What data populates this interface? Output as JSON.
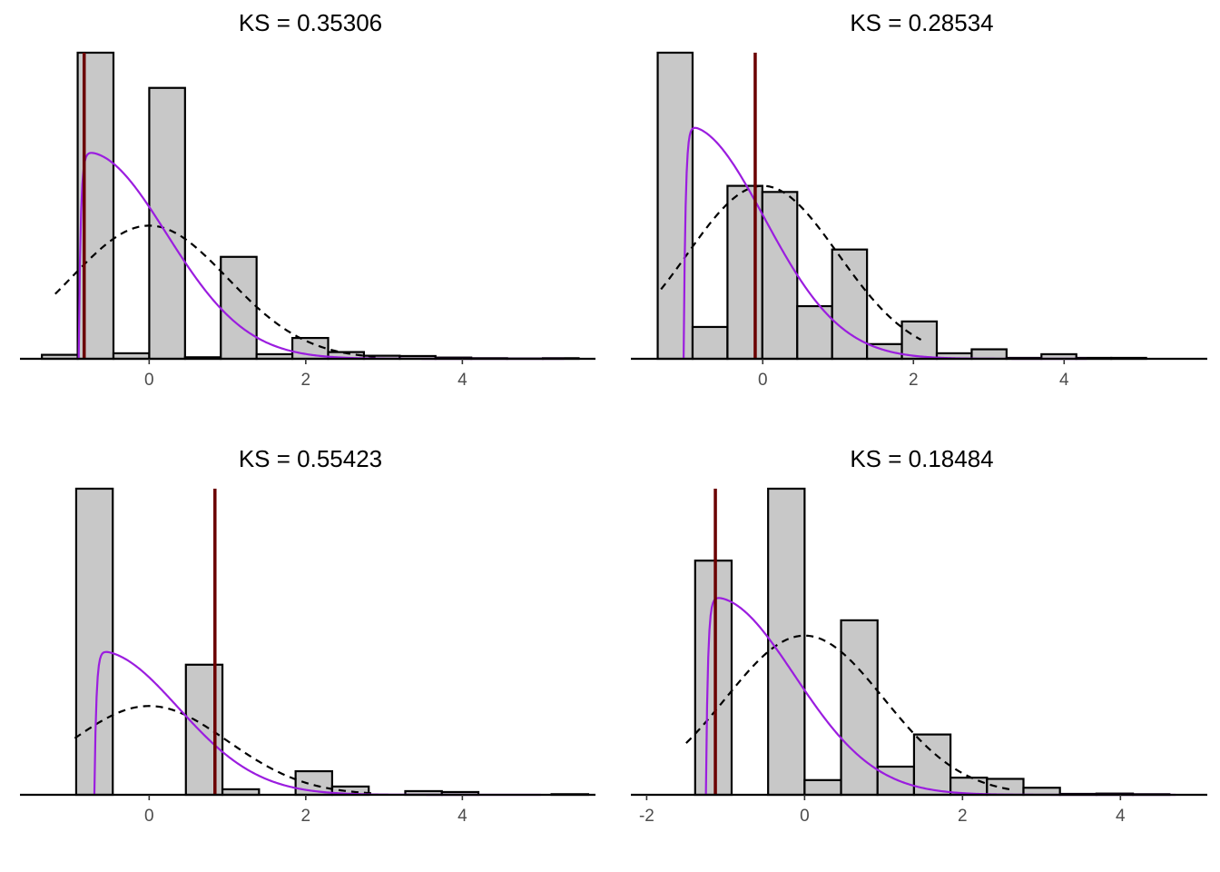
{
  "chart_data": [
    {
      "type": "bar",
      "title": "KS = 0.35306",
      "bin_width": 0.457,
      "xlim": [
        -1.65,
        5.7
      ],
      "ylim": [
        0,
        1
      ],
      "x_ticks": [
        0,
        2,
        4
      ],
      "x_tick_labels": [
        "0",
        "2",
        "4"
      ],
      "bins": [
        {
          "x0": -1.37,
          "x1": -0.913,
          "y": 0.013
        },
        {
          "x0": -0.913,
          "x1": -0.456,
          "y": 1.0
        },
        {
          "x0": -0.456,
          "x1": 0.001,
          "y": 0.018
        },
        {
          "x0": 0.001,
          "x1": 0.458,
          "y": 0.885
        },
        {
          "x0": 0.458,
          "x1": 0.915,
          "y": 0.005
        },
        {
          "x0": 0.915,
          "x1": 1.372,
          "y": 0.333
        },
        {
          "x0": 1.372,
          "x1": 1.829,
          "y": 0.015
        },
        {
          "x0": 1.829,
          "x1": 2.286,
          "y": 0.068
        },
        {
          "x0": 2.286,
          "x1": 2.743,
          "y": 0.022
        },
        {
          "x0": 2.743,
          "x1": 3.2,
          "y": 0.01
        },
        {
          "x0": 3.2,
          "x1": 3.657,
          "y": 0.009
        },
        {
          "x0": 3.657,
          "x1": 4.114,
          "y": 0.004
        },
        {
          "x0": 4.114,
          "x1": 4.571,
          "y": 0.002
        },
        {
          "x0": 4.571,
          "x1": 5.028,
          "y": 0.001
        },
        {
          "x0": 5.028,
          "x1": 5.485,
          "y": 0.002
        }
      ],
      "normal_curve": {
        "mean": 0,
        "sd": 1,
        "peak": 0.435,
        "x_range": [
          -1.2,
          2.9
        ]
      },
      "fit_curve": {
        "start": -0.9,
        "peak": 0.675,
        "mode": -0.8,
        "x_end": 5.3
      },
      "reference_line_x": -0.83
    },
    {
      "type": "bar",
      "title": "KS = 0.28534",
      "bin_width": 0.463,
      "xlim": [
        -1.75,
        5.9
      ],
      "ylim": [
        0,
        1
      ],
      "x_ticks": [
        0,
        2,
        4
      ],
      "x_tick_labels": [
        "0",
        "2",
        "4"
      ],
      "bins": [
        {
          "x0": -1.394,
          "x1": -0.931,
          "y": 1.0
        },
        {
          "x0": -0.931,
          "x1": -0.468,
          "y": 0.104
        },
        {
          "x0": -0.468,
          "x1": -0.005,
          "y": 0.565
        },
        {
          "x0": -0.005,
          "x1": 0.458,
          "y": 0.545
        },
        {
          "x0": 0.458,
          "x1": 0.921,
          "y": 0.172
        },
        {
          "x0": 0.921,
          "x1": 1.384,
          "y": 0.357
        },
        {
          "x0": 1.384,
          "x1": 1.847,
          "y": 0.048
        },
        {
          "x0": 1.847,
          "x1": 2.31,
          "y": 0.122
        },
        {
          "x0": 2.31,
          "x1": 2.773,
          "y": 0.018
        },
        {
          "x0": 2.773,
          "x1": 3.236,
          "y": 0.031
        },
        {
          "x0": 3.236,
          "x1": 3.699,
          "y": 0.003
        },
        {
          "x0": 3.699,
          "x1": 4.162,
          "y": 0.015
        },
        {
          "x0": 4.162,
          "x1": 4.625,
          "y": 0.003
        },
        {
          "x0": 4.625,
          "x1": 5.088,
          "y": 0.003
        }
      ],
      "normal_curve": {
        "mean": 0,
        "sd": 1,
        "peak": 0.565,
        "x_range": [
          -1.35,
          2.1
        ]
      },
      "fit_curve": {
        "start": -1.05,
        "peak": 0.76,
        "mode": -1.0,
        "x_end": 4.3
      },
      "reference_line_x": -0.1
    },
    {
      "type": "bar",
      "title": "KS = 0.55423",
      "bin_width": 0.467,
      "xlim": [
        -1.65,
        5.7
      ],
      "ylim": [
        0,
        1
      ],
      "x_ticks": [
        0,
        2,
        4
      ],
      "x_tick_labels": [
        "0",
        "2",
        "4"
      ],
      "bins": [
        {
          "x0": -0.932,
          "x1": -0.465,
          "y": 1.0
        },
        {
          "x0": -0.465,
          "x1": 0.002,
          "y": 0.0
        },
        {
          "x0": 0.002,
          "x1": 0.469,
          "y": 0.0
        },
        {
          "x0": 0.469,
          "x1": 0.936,
          "y": 0.425
        },
        {
          "x0": 0.936,
          "x1": 1.403,
          "y": 0.018
        },
        {
          "x0": 1.403,
          "x1": 1.87,
          "y": 0.0
        },
        {
          "x0": 1.87,
          "x1": 2.337,
          "y": 0.077
        },
        {
          "x0": 2.337,
          "x1": 2.804,
          "y": 0.027
        },
        {
          "x0": 2.804,
          "x1": 3.271,
          "y": 0.0
        },
        {
          "x0": 3.271,
          "x1": 3.738,
          "y": 0.012
        },
        {
          "x0": 3.738,
          "x1": 4.205,
          "y": 0.009
        },
        {
          "x0": 4.205,
          "x1": 4.672,
          "y": 0.0
        },
        {
          "x0": 4.672,
          "x1": 5.139,
          "y": 0.0
        },
        {
          "x0": 5.139,
          "x1": 5.606,
          "y": 0.002
        }
      ],
      "normal_curve": {
        "mean": 0,
        "sd": 1,
        "peak": 0.29,
        "x_range": [
          -0.95,
          2.9
        ]
      },
      "fit_curve": {
        "start": -0.7,
        "peak": 0.47,
        "mode": -0.65,
        "x_end": 5.0
      },
      "reference_line_x": 0.84
    },
    {
      "type": "bar",
      "title": "KS = 0.18484",
      "bin_width": 0.462,
      "xlim": [
        -2.2,
        5.1
      ],
      "ylim": [
        0,
        1
      ],
      "x_ticks": [
        -2,
        0,
        2,
        4
      ],
      "x_tick_labels": [
        "-2",
        "0",
        "2",
        "4"
      ],
      "bins": [
        {
          "x0": -1.386,
          "x1": -0.924,
          "y": 0.765
        },
        {
          "x0": -0.924,
          "x1": -0.462,
          "y": 0.0
        },
        {
          "x0": -0.462,
          "x1": 0.0,
          "y": 1.0
        },
        {
          "x0": 0.0,
          "x1": 0.462,
          "y": 0.048
        },
        {
          "x0": 0.462,
          "x1": 0.924,
          "y": 0.57
        },
        {
          "x0": 0.924,
          "x1": 1.386,
          "y": 0.092
        },
        {
          "x0": 1.386,
          "x1": 1.848,
          "y": 0.197
        },
        {
          "x0": 1.848,
          "x1": 2.31,
          "y": 0.056
        },
        {
          "x0": 2.31,
          "x1": 2.772,
          "y": 0.052
        },
        {
          "x0": 2.772,
          "x1": 3.234,
          "y": 0.023
        },
        {
          "x0": 3.234,
          "x1": 3.696,
          "y": 0.003
        },
        {
          "x0": 3.696,
          "x1": 4.158,
          "y": 0.004
        },
        {
          "x0": 4.158,
          "x1": 4.62,
          "y": 0.002
        }
      ],
      "normal_curve": {
        "mean": 0,
        "sd": 1,
        "peak": 0.52,
        "x_range": [
          -1.5,
          2.6
        ]
      },
      "fit_curve": {
        "start": -1.25,
        "peak": 0.645,
        "mode": -1.15,
        "x_end": 4.7
      },
      "reference_line_x": -1.13
    }
  ]
}
